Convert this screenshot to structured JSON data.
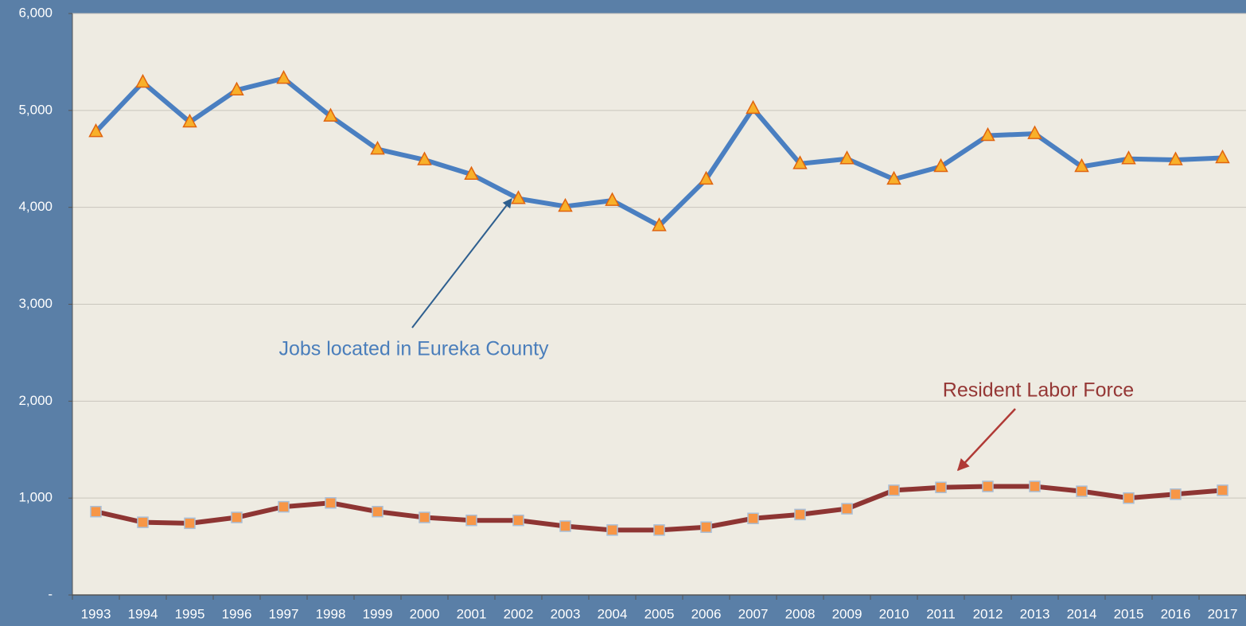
{
  "chart_data": {
    "type": "line",
    "categories": [
      "1993",
      "1994",
      "1995",
      "1996",
      "1997",
      "1998",
      "1999",
      "2000",
      "2001",
      "2002",
      "2003",
      "2004",
      "2005",
      "2006",
      "2007",
      "2008",
      "2009",
      "2010",
      "2011",
      "2012",
      "2013",
      "2014",
      "2015",
      "2016",
      "2017"
    ],
    "series": [
      {
        "name": "Jobs located in Eureka County",
        "color": "#4a7fc1",
        "values": [
          4780,
          5290,
          4880,
          5210,
          5330,
          4940,
          4600,
          4490,
          4340,
          4090,
          4010,
          4070,
          3810,
          4290,
          5020,
          4450,
          4500,
          4290,
          4420,
          4740,
          4760,
          4420,
          4500,
          4490,
          4510
        ]
      },
      {
        "name": "Resident Labor Force",
        "color": "#8e3533",
        "values": [
          860,
          750,
          740,
          800,
          910,
          950,
          860,
          800,
          770,
          770,
          710,
          670,
          670,
          700,
          790,
          830,
          890,
          1080,
          1110,
          1120,
          1120,
          1070,
          1000,
          1040,
          1080
        ]
      }
    ],
    "ylim": [
      0,
      6000
    ],
    "yticks": [
      {
        "value": 0,
        "label": "-"
      },
      {
        "value": 1000,
        "label": "1,000"
      },
      {
        "value": 2000,
        "label": "2,000"
      },
      {
        "value": 3000,
        "label": "3,000"
      },
      {
        "value": 4000,
        "label": "4,000"
      },
      {
        "value": 5000,
        "label": "5,000"
      },
      {
        "value": 6000,
        "label": "6,000"
      }
    ],
    "grid": true
  }
}
